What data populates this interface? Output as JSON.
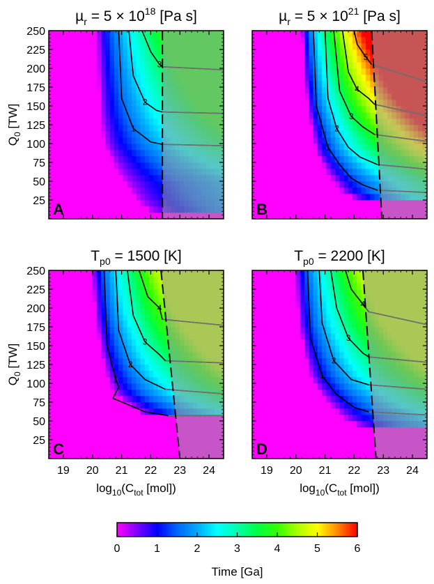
{
  "chart_data": [
    {
      "type": "heatmap",
      "panel_label": "A",
      "title": {
        "prefix": "µ",
        "sub": "r",
        "mid": " = 5 × 10",
        "sup": "18",
        "suffix": " [Pa s]"
      },
      "ylabel": {
        "main": "Q",
        "sub": "0",
        "rest": " [TW]"
      },
      "xlabel": null,
      "xlim": [
        18.5,
        24.5
      ],
      "ylim": [
        0,
        250
      ],
      "xticks": [
        19,
        20,
        21,
        22,
        23,
        24
      ],
      "yticks": [
        25,
        50,
        75,
        100,
        125,
        150,
        175,
        200,
        225,
        250
      ],
      "show_xticklabels": false,
      "show_yticklabels": true,
      "max_value": 3.8,
      "boundary": [
        [
          20.15,
          250
        ],
        [
          20.25,
          140
        ],
        [
          20.4,
          100
        ],
        [
          20.9,
          60
        ],
        [
          21.5,
          25
        ],
        [
          22.1,
          5
        ]
      ],
      "cut": {
        "x_top": 22.4,
        "x_bottom": 22.4,
        "y_min": 0,
        "cap": 3.8
      },
      "contours": [
        {
          "label": "1",
          "points": [
            [
              20.9,
              250
            ],
            [
              21.0,
              160
            ],
            [
              21.4,
              120
            ],
            [
              22.0,
              102
            ],
            [
              22.4,
              99
            ],
            [
              24.5,
              97
            ]
          ]
        },
        {
          "label": "2",
          "points": [
            [
              21.25,
              250
            ],
            [
              21.4,
              190
            ],
            [
              21.8,
              155
            ],
            [
              22.2,
              144
            ],
            [
              22.4,
              142
            ],
            [
              24.5,
              140
            ]
          ]
        },
        {
          "label": "3",
          "points": [
            [
              21.7,
              250
            ],
            [
              22.0,
              222
            ],
            [
              22.3,
              205
            ],
            [
              22.4,
              202
            ],
            [
              24.5,
              198
            ]
          ]
        }
      ]
    },
    {
      "type": "heatmap",
      "panel_label": "B",
      "title": {
        "prefix": "µ",
        "sub": "r",
        "mid": " = 5 × 10",
        "sup": "21",
        "suffix": " [Pa s]"
      },
      "ylabel": null,
      "xlabel": null,
      "xlim": [
        18.5,
        24.5
      ],
      "ylim": [
        0,
        250
      ],
      "xticks": [
        19,
        20,
        21,
        22,
        23,
        24
      ],
      "yticks": [
        25,
        50,
        75,
        100,
        125,
        150,
        175,
        200,
        225,
        250
      ],
      "show_xticklabels": false,
      "show_yticklabels": false,
      "max_value": 6.2,
      "boundary": [
        [
          20.2,
          250
        ],
        [
          20.3,
          190
        ],
        [
          20.4,
          150
        ],
        [
          20.7,
          90
        ],
        [
          21.1,
          60
        ],
        [
          21.6,
          35
        ],
        [
          22.0,
          28
        ],
        [
          22.9,
          28
        ]
      ],
      "cut": {
        "x_top": 22.6,
        "x_bottom": 22.95,
        "y_min": 35,
        "cap": 6.2
      },
      "contours": [
        {
          "label": "1",
          "points": [
            [
              20.6,
              250
            ],
            [
              20.7,
              150
            ],
            [
              21.1,
              95
            ],
            [
              21.5,
              72
            ],
            [
              21.9,
              54
            ],
            [
              22.3,
              45
            ],
            [
              22.8,
              38
            ],
            [
              24.5,
              35
            ]
          ]
        },
        {
          "label": "2",
          "points": [
            [
              21.0,
              250
            ],
            [
              21.1,
              160
            ],
            [
              21.4,
              120
            ],
            [
              21.8,
              95
            ],
            [
              22.2,
              82
            ],
            [
              22.8,
              72
            ],
            [
              24.5,
              66
            ]
          ]
        },
        {
          "label": "3",
          "points": [
            [
              21.3,
              250
            ],
            [
              21.5,
              170
            ],
            [
              21.9,
              136
            ],
            [
              22.3,
              122
            ],
            [
              22.7,
              112
            ],
            [
              24.5,
              103
            ]
          ]
        },
        {
          "label": "4",
          "points": [
            [
              21.6,
              250
            ],
            [
              21.8,
              195
            ],
            [
              22.1,
              172
            ],
            [
              22.5,
              160
            ],
            [
              22.7,
              152
            ],
            [
              24.5,
              137
            ]
          ]
        },
        {
          "label": "5",
          "points": [
            [
              22.0,
              250
            ],
            [
              22.1,
              232
            ],
            [
              22.4,
              215
            ],
            [
              22.6,
              205
            ],
            [
              24.5,
              182
            ]
          ]
        }
      ]
    },
    {
      "type": "heatmap",
      "panel_label": "C",
      "title": {
        "prefix": "T",
        "sub": "p0",
        "mid": " = 1500 [K]",
        "sup": "",
        "suffix": ""
      },
      "ylabel": {
        "main": "Q",
        "sub": "0",
        "rest": " [TW]"
      },
      "xlabel": {
        "main": "log",
        "sub1": "10",
        "mid": "(C",
        "sub2": "tot",
        "rest": " [mol])"
      },
      "xlim": [
        18.5,
        24.5
      ],
      "ylim": [
        0,
        250
      ],
      "xticks": [
        19,
        20,
        21,
        22,
        23,
        24
      ],
      "yticks": [
        25,
        50,
        75,
        100,
        125,
        150,
        175,
        200,
        225,
        250
      ],
      "show_xticklabels": true,
      "show_yticklabels": true,
      "max_value": 4.6,
      "boundary": [
        [
          20.0,
          250
        ],
        [
          20.1,
          190
        ],
        [
          20.3,
          140
        ],
        [
          20.5,
          110
        ],
        [
          20.7,
          90
        ],
        [
          21.1,
          75
        ],
        [
          21.6,
          62
        ],
        [
          22.3,
          58
        ],
        [
          23.0,
          58
        ]
      ],
      "cut": {
        "x_top": 22.35,
        "x_bottom": 23.0,
        "y_min": 58,
        "cap": 4.6
      },
      "contours": [
        {
          "label": "1",
          "points": [
            [
              20.4,
              250
            ],
            [
              20.5,
              150
            ],
            [
              20.8,
              105
            ],
            [
              20.9,
              95
            ],
            [
              20.7,
              80
            ],
            [
              21.2,
              72
            ],
            [
              21.8,
              62
            ],
            [
              22.6,
              57
            ],
            [
              24.5,
              57
            ]
          ]
        },
        {
          "label": "2",
          "points": [
            [
              20.8,
              250
            ],
            [
              20.9,
              170
            ],
            [
              21.3,
              125
            ],
            [
              21.8,
              105
            ],
            [
              22.5,
              92
            ],
            [
              24.5,
              86
            ]
          ]
        },
        {
          "label": "3",
          "points": [
            [
              21.2,
              250
            ],
            [
              21.4,
              190
            ],
            [
              21.8,
              155
            ],
            [
              22.3,
              138
            ],
            [
              22.5,
              130
            ],
            [
              24.5,
              127
            ]
          ]
        },
        {
          "label": "4",
          "points": [
            [
              21.6,
              250
            ],
            [
              21.9,
              215
            ],
            [
              22.3,
              200
            ],
            [
              22.4,
              185
            ],
            [
              24.5,
              177
            ]
          ]
        }
      ]
    },
    {
      "type": "heatmap",
      "panel_label": "D",
      "title": {
        "prefix": "T",
        "sub": "p0",
        "mid": " = 2200 [K]",
        "sup": "",
        "suffix": ""
      },
      "ylabel": null,
      "xlabel": {
        "main": "log",
        "sub1": "10",
        "mid": "(C",
        "sub2": "tot",
        "rest": " [mol])"
      },
      "xlim": [
        18.5,
        24.5
      ],
      "ylim": [
        0,
        250
      ],
      "xticks": [
        19,
        20,
        21,
        22,
        23,
        24
      ],
      "yticks": [
        25,
        50,
        75,
        100,
        125,
        150,
        175,
        200,
        225,
        250
      ],
      "show_xticklabels": true,
      "show_yticklabels": false,
      "max_value": 4.6,
      "boundary": [
        [
          20.0,
          250
        ],
        [
          20.1,
          180
        ],
        [
          20.3,
          140
        ],
        [
          20.5,
          110
        ],
        [
          20.8,
          90
        ],
        [
          21.2,
          70
        ],
        [
          21.8,
          48
        ],
        [
          22.4,
          42
        ],
        [
          22.8,
          40
        ]
      ],
      "cut": {
        "x_top": 22.3,
        "x_bottom": 22.75,
        "y_min": 40,
        "cap": 4.6
      },
      "contours": [
        {
          "label": "1",
          "points": [
            [
              20.4,
              250
            ],
            [
              20.5,
              160
            ],
            [
              20.9,
              110
            ],
            [
              21.4,
              85
            ],
            [
              22.0,
              68
            ],
            [
              22.5,
              62
            ],
            [
              24.5,
              58
            ]
          ]
        },
        {
          "label": "2",
          "points": [
            [
              20.8,
              250
            ],
            [
              20.9,
              180
            ],
            [
              21.3,
              130
            ],
            [
              21.9,
              105
            ],
            [
              22.5,
              98
            ],
            [
              24.5,
              92
            ]
          ]
        },
        {
          "label": "3",
          "points": [
            [
              21.2,
              250
            ],
            [
              21.4,
              200
            ],
            [
              21.8,
              160
            ],
            [
              22.3,
              140
            ],
            [
              22.5,
              135
            ],
            [
              24.5,
              128
            ]
          ]
        },
        {
          "label": "4",
          "points": [
            [
              21.7,
              250
            ],
            [
              21.9,
              225
            ],
            [
              22.3,
              205
            ],
            [
              22.5,
              195
            ],
            [
              24.5,
              178
            ]
          ]
        }
      ]
    }
  ],
  "colorbar": {
    "range": [
      0,
      6
    ],
    "ticks": [
      0,
      1,
      2,
      3,
      4,
      5,
      6
    ],
    "label": "Time [Ga]",
    "stops": [
      {
        "v": 0,
        "color": "#ff00ff"
      },
      {
        "v": 0.5,
        "color": "#8000ff"
      },
      {
        "v": 1.0,
        "color": "#0000ff"
      },
      {
        "v": 1.5,
        "color": "#0066ff"
      },
      {
        "v": 2.0,
        "color": "#00aaff"
      },
      {
        "v": 2.5,
        "color": "#00ffff"
      },
      {
        "v": 3.0,
        "color": "#00ffaa"
      },
      {
        "v": 3.5,
        "color": "#00ff44"
      },
      {
        "v": 4.0,
        "color": "#33ff00"
      },
      {
        "v": 4.5,
        "color": "#aaff00"
      },
      {
        "v": 5.0,
        "color": "#ffff00"
      },
      {
        "v": 5.5,
        "color": "#ff8800"
      },
      {
        "v": 6.0,
        "color": "#ff0000"
      }
    ]
  },
  "styles": {
    "background_color": "#ff00ff",
    "overlay_color": "#9a9a9a",
    "contour_color": "#000000",
    "gray_contour_color": "#707070",
    "frame_color": "#000000"
  }
}
